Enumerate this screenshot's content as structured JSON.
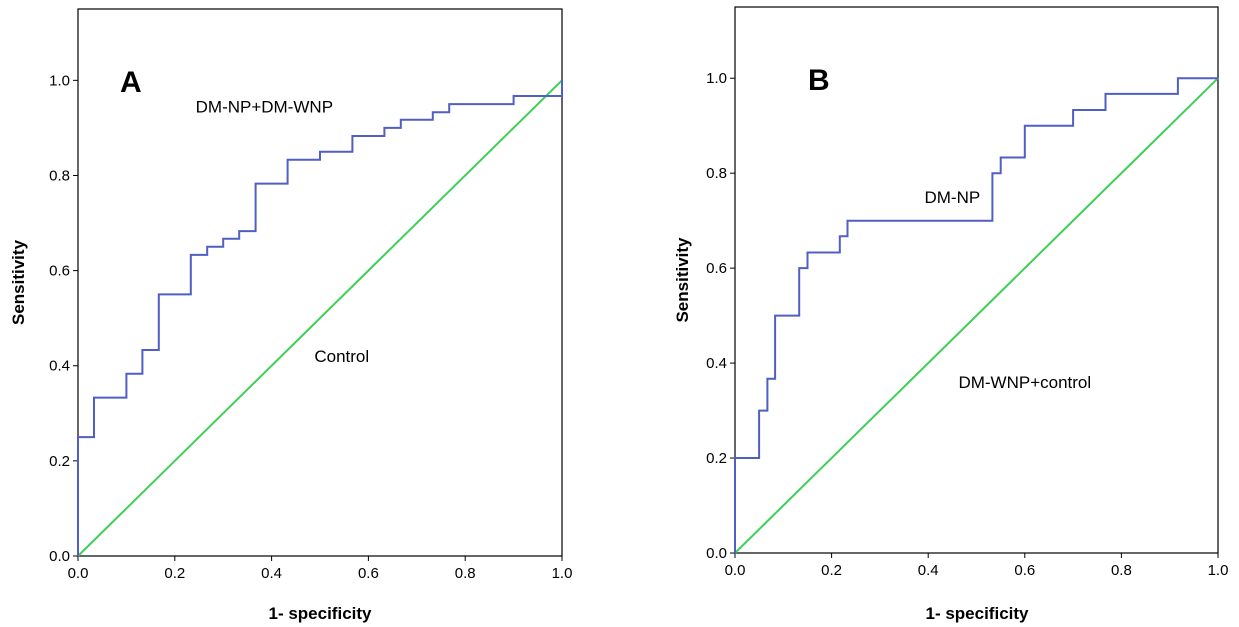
{
  "chart_data": [
    {
      "type": "line",
      "panel_label": "A",
      "xlabel": "1- specificity",
      "ylabel": "Sensitivity",
      "xlim": [
        0,
        1
      ],
      "ylim": [
        0,
        1.15
      ],
      "xticks": [
        "0.0",
        "0.2",
        "0.4",
        "0.6",
        "0.8",
        "1.0"
      ],
      "yticks": [
        "0.0",
        "0.2",
        "0.4",
        "0.6",
        "0.8",
        "1.0"
      ],
      "grid": false,
      "series": [
        {
          "name": "DM-NP+DM-WNP",
          "color": "#4f5fc4",
          "points": [
            [
              0,
              0
            ],
            [
              0,
              0.25
            ],
            [
              0.033,
              0.25
            ],
            [
              0.033,
              0.333
            ],
            [
              0.1,
              0.333
            ],
            [
              0.1,
              0.383
            ],
            [
              0.133,
              0.383
            ],
            [
              0.133,
              0.433
            ],
            [
              0.167,
              0.433
            ],
            [
              0.167,
              0.55
            ],
            [
              0.233,
              0.55
            ],
            [
              0.233,
              0.633
            ],
            [
              0.267,
              0.633
            ],
            [
              0.267,
              0.65
            ],
            [
              0.3,
              0.65
            ],
            [
              0.3,
              0.667
            ],
            [
              0.333,
              0.667
            ],
            [
              0.333,
              0.683
            ],
            [
              0.367,
              0.683
            ],
            [
              0.367,
              0.783
            ],
            [
              0.433,
              0.783
            ],
            [
              0.433,
              0.833
            ],
            [
              0.5,
              0.833
            ],
            [
              0.5,
              0.85
            ],
            [
              0.567,
              0.85
            ],
            [
              0.567,
              0.883
            ],
            [
              0.633,
              0.883
            ],
            [
              0.633,
              0.9
            ],
            [
              0.667,
              0.9
            ],
            [
              0.667,
              0.917
            ],
            [
              0.733,
              0.917
            ],
            [
              0.733,
              0.933
            ],
            [
              0.767,
              0.933
            ],
            [
              0.767,
              0.95
            ],
            [
              0.9,
              0.95
            ],
            [
              0.9,
              0.967
            ],
            [
              1.0,
              0.967
            ],
            [
              1.0,
              1.0
            ]
          ]
        },
        {
          "name": "Control",
          "color": "#3ecf57",
          "points": [
            [
              0,
              0
            ],
            [
              1,
              1
            ]
          ]
        }
      ],
      "annotations": [
        {
          "text": "DM-NP+DM-WNP",
          "x": 0.385,
          "y": 0.945
        },
        {
          "text": "Control",
          "x": 0.545,
          "y": 0.42
        }
      ]
    },
    {
      "type": "line",
      "panel_label": "B",
      "xlabel": "1- specificity",
      "ylabel": "Sensitivity",
      "xlim": [
        0,
        1
      ],
      "ylim": [
        0,
        1.15
      ],
      "xticks": [
        "0.0",
        "0.2",
        "0.4",
        "0.6",
        "0.8",
        "1.0"
      ],
      "yticks": [
        "0.0",
        "0.2",
        "0.4",
        "0.6",
        "0.8",
        "1.0"
      ],
      "grid": false,
      "series": [
        {
          "name": "DM-NP",
          "color": "#4f5fc4",
          "points": [
            [
              0,
              0
            ],
            [
              0,
              0.2
            ],
            [
              0.05,
              0.2
            ],
            [
              0.05,
              0.3
            ],
            [
              0.067,
              0.3
            ],
            [
              0.067,
              0.367
            ],
            [
              0.083,
              0.367
            ],
            [
              0.083,
              0.5
            ],
            [
              0.133,
              0.5
            ],
            [
              0.133,
              0.6
            ],
            [
              0.15,
              0.6
            ],
            [
              0.15,
              0.633
            ],
            [
              0.217,
              0.633
            ],
            [
              0.217,
              0.667
            ],
            [
              0.233,
              0.667
            ],
            [
              0.233,
              0.7
            ],
            [
              0.533,
              0.7
            ],
            [
              0.533,
              0.8
            ],
            [
              0.55,
              0.8
            ],
            [
              0.55,
              0.833
            ],
            [
              0.6,
              0.833
            ],
            [
              0.6,
              0.9
            ],
            [
              0.7,
              0.9
            ],
            [
              0.7,
              0.933
            ],
            [
              0.767,
              0.933
            ],
            [
              0.767,
              0.967
            ],
            [
              0.917,
              0.967
            ],
            [
              0.917,
              1.0
            ],
            [
              1.0,
              1.0
            ]
          ]
        },
        {
          "name": "DM-WNP+control",
          "color": "#3ecf57",
          "points": [
            [
              0,
              0
            ],
            [
              1,
              1
            ]
          ]
        }
      ],
      "annotations": [
        {
          "text": "DM-NP",
          "x": 0.45,
          "y": 0.75
        },
        {
          "text": "DM-WNP+control",
          "x": 0.6,
          "y": 0.36
        }
      ]
    }
  ]
}
